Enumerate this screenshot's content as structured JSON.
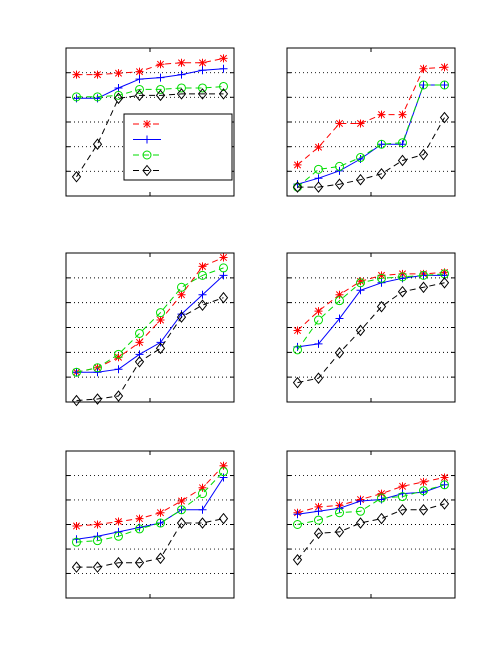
{
  "chart_data": [
    {
      "type": "line",
      "x": [
        1,
        2,
        3,
        4,
        5,
        6,
        7,
        8
      ],
      "xlim": [
        0.5,
        8.5
      ],
      "ylim": [
        0,
        1
      ],
      "grid": "horizontal-dotted",
      "legend": "bottom-right",
      "series": [
        {
          "values": [
            0.82,
            0.82,
            0.83,
            0.84,
            0.89,
            0.9,
            0.9,
            0.93
          ]
        },
        {
          "values": [
            0.66,
            0.66,
            0.73,
            0.79,
            0.8,
            0.82,
            0.85,
            0.86
          ]
        },
        {
          "values": [
            0.67,
            0.67,
            0.68,
            0.72,
            0.72,
            0.73,
            0.73,
            0.74
          ]
        },
        {
          "values": [
            0.13,
            0.35,
            0.66,
            0.68,
            0.68,
            0.69,
            0.69,
            0.69
          ]
        }
      ]
    },
    {
      "type": "line",
      "x": [
        1,
        2,
        3,
        4,
        5,
        6,
        7,
        8
      ],
      "xlim": [
        0.5,
        8.5
      ],
      "ylim": [
        0,
        1
      ],
      "grid": "horizontal-dotted",
      "series": [
        {
          "values": [
            0.21,
            0.33,
            0.49,
            0.49,
            0.55,
            0.55,
            0.86,
            0.87
          ]
        },
        {
          "values": [
            0.08,
            0.12,
            0.17,
            0.25,
            0.35,
            0.35,
            0.75,
            0.75
          ]
        },
        {
          "values": [
            0.06,
            0.18,
            0.2,
            0.26,
            0.35,
            0.36,
            0.75,
            0.75
          ]
        },
        {
          "values": [
            0.06,
            0.06,
            0.08,
            0.11,
            0.15,
            0.24,
            0.28,
            0.53
          ]
        }
      ]
    },
    {
      "type": "line",
      "x": [
        1,
        2,
        3,
        4,
        5,
        6,
        7,
        8
      ],
      "xlim": [
        0.5,
        8.5
      ],
      "ylim": [
        0,
        1
      ],
      "grid": "horizontal-dotted",
      "series": [
        {
          "values": [
            0.2,
            0.23,
            0.3,
            0.4,
            0.55,
            0.72,
            0.91,
            0.97
          ]
        },
        {
          "values": [
            0.2,
            0.2,
            0.22,
            0.32,
            0.4,
            0.59,
            0.72,
            0.85
          ]
        },
        {
          "values": [
            0.2,
            0.23,
            0.32,
            0.46,
            0.6,
            0.77,
            0.85,
            0.9
          ]
        },
        {
          "values": [
            0.01,
            0.02,
            0.04,
            0.27,
            0.36,
            0.57,
            0.65,
            0.7
          ]
        }
      ]
    },
    {
      "type": "line",
      "x": [
        1,
        2,
        3,
        4,
        5,
        6,
        7,
        8
      ],
      "xlim": [
        0.5,
        8.5
      ],
      "ylim": [
        0,
        1
      ],
      "grid": "horizontal-dotted",
      "series": [
        {
          "values": [
            0.48,
            0.61,
            0.72,
            0.81,
            0.85,
            0.86,
            0.86,
            0.87
          ]
        },
        {
          "values": [
            0.37,
            0.39,
            0.56,
            0.75,
            0.8,
            0.83,
            0.85,
            0.85
          ]
        },
        {
          "values": [
            0.35,
            0.55,
            0.68,
            0.8,
            0.83,
            0.84,
            0.85,
            0.86
          ]
        },
        {
          "values": [
            0.13,
            0.16,
            0.33,
            0.48,
            0.64,
            0.74,
            0.77,
            0.8
          ]
        }
      ]
    },
    {
      "type": "line",
      "x": [
        1,
        2,
        3,
        4,
        5,
        6,
        7,
        8
      ],
      "xlim": [
        0.5,
        8.5
      ],
      "ylim": [
        0,
        1
      ],
      "grid": "horizontal-dotted",
      "series": [
        {
          "values": [
            0.49,
            0.5,
            0.52,
            0.54,
            0.58,
            0.66,
            0.75,
            0.9
          ]
        },
        {
          "values": [
            0.4,
            0.42,
            0.45,
            0.48,
            0.51,
            0.6,
            0.6,
            0.82
          ]
        },
        {
          "values": [
            0.38,
            0.39,
            0.42,
            0.47,
            0.51,
            0.6,
            0.71,
            0.86
          ]
        },
        {
          "values": [
            0.21,
            0.21,
            0.24,
            0.24,
            0.27,
            0.51,
            0.51,
            0.54
          ]
        }
      ]
    },
    {
      "type": "line",
      "x": [
        1,
        2,
        3,
        4,
        5,
        6,
        7,
        8
      ],
      "xlim": [
        0.5,
        8.5
      ],
      "ylim": [
        0,
        1
      ],
      "grid": "horizontal-dotted",
      "series": [
        {
          "values": [
            0.58,
            0.62,
            0.63,
            0.67,
            0.71,
            0.76,
            0.79,
            0.82
          ]
        },
        {
          "values": [
            0.57,
            0.59,
            0.61,
            0.66,
            0.67,
            0.71,
            0.72,
            0.77
          ]
        },
        {
          "values": [
            0.5,
            0.53,
            0.58,
            0.59,
            0.68,
            0.69,
            0.73,
            0.77
          ]
        },
        {
          "values": [
            0.26,
            0.44,
            0.45,
            0.51,
            0.54,
            0.6,
            0.6,
            0.64
          ]
        }
      ]
    }
  ],
  "styles": {
    "series_colors": [
      "#ff0000",
      "#0000ff",
      "#00dd00",
      "#000000"
    ],
    "series_markers": [
      "star-icon",
      "plus-icon",
      "circle-icon",
      "diamond-icon"
    ],
    "series_lines": [
      "dashed",
      "solid",
      "dashed",
      "dashed"
    ]
  }
}
